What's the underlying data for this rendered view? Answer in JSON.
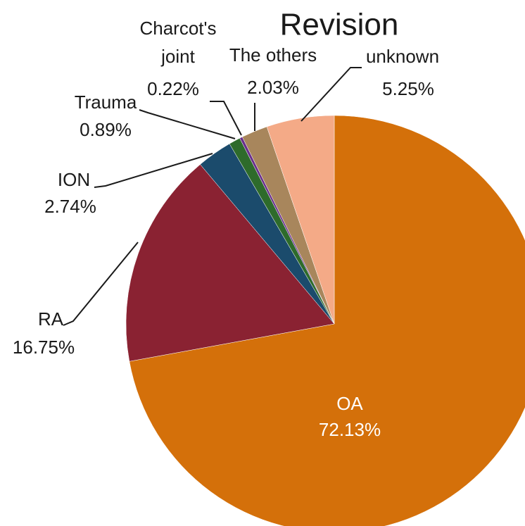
{
  "chart_data": {
    "type": "pie",
    "title": "Revision",
    "categories": [
      "OA",
      "RA",
      "ION",
      "Trauma",
      "Charcot's joint",
      "The others",
      "unknown"
    ],
    "values": [
      72.13,
      16.75,
      2.74,
      0.89,
      0.22,
      2.03,
      5.25
    ],
    "value_labels": [
      "72.13%",
      "16.75%",
      "2.74%",
      "0.89%",
      "0.22%",
      "2.03%",
      "5.25%"
    ],
    "colors": [
      "#d4700a",
      "#8a2232",
      "#1b4b6c",
      "#2e6b2b",
      "#6a2f8c",
      "#a8865c",
      "#f4aa87"
    ]
  }
}
